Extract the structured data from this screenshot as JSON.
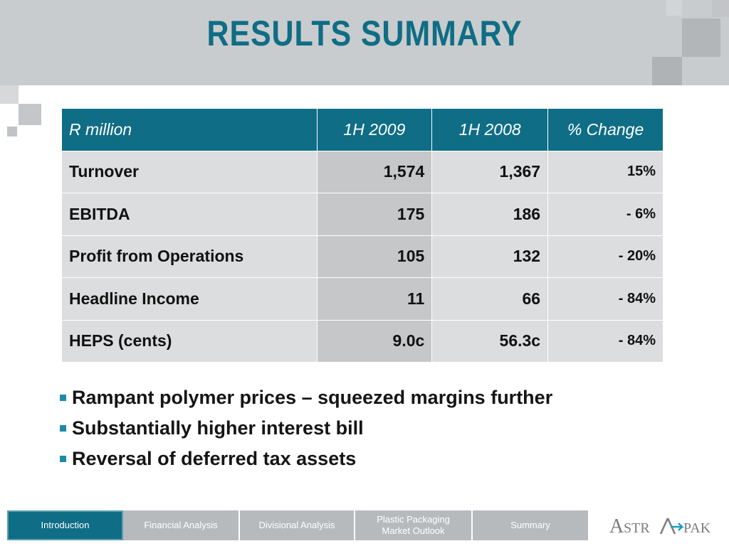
{
  "slide": {
    "title": "RESULTS  SUMMARY"
  },
  "table": {
    "headers": [
      "R million",
      "1H 2009",
      "1H 2008",
      "% Change"
    ],
    "rows": [
      {
        "label": "Turnover",
        "h2009": "1,574",
        "h2008": "1,367",
        "change": "15%"
      },
      {
        "label": "EBITDA",
        "h2009": "175",
        "h2008": "186",
        "change": "- 6%"
      },
      {
        "label": "Profit from Operations",
        "h2009": "105",
        "h2008": "132",
        "change": "- 20%"
      },
      {
        "label": "Headline Income",
        "h2009": "11",
        "h2008": "66",
        "change": "- 84%"
      },
      {
        "label": "HEPS (cents)",
        "h2009": "9.0c",
        "h2008": "56.3c",
        "change": "- 84%"
      }
    ]
  },
  "bullets": [
    "Rampant polymer prices – squeezed margins further",
    "Substantially higher interest bill",
    "Reversal of deferred tax assets"
  ],
  "nav": {
    "items": [
      {
        "label": "Introduction",
        "active": true
      },
      {
        "label": "Financial Analysis",
        "active": false
      },
      {
        "label": "Divisional Analysis",
        "active": false
      },
      {
        "label": "Plastic Packaging Market Outlook",
        "active": false
      },
      {
        "label": "Summary",
        "active": false
      }
    ]
  },
  "logo": {
    "text": "ASTRAPAK"
  },
  "colors": {
    "accent": "#0f6d85",
    "table_body": "#dcdddf",
    "table_highlight": "#c5c7c9",
    "band": "#c9ccce",
    "nav_inactive": "#b7babd",
    "bullet": "#1f8aa8"
  }
}
